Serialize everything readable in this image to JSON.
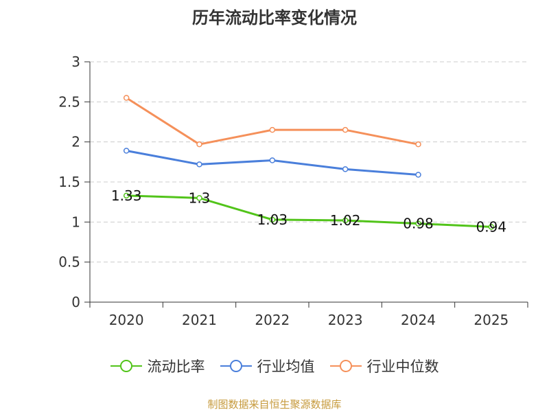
{
  "chart_data": {
    "type": "line",
    "title": "历年流动比率变化情况",
    "categories": [
      "2020",
      "2021",
      "2022",
      "2023",
      "2024",
      "2025"
    ],
    "ylim": [
      0,
      3
    ],
    "yticks": [
      "0",
      "0.5",
      "1",
      "1.5",
      "2",
      "2.5",
      "3"
    ],
    "grid": true,
    "legend_position": "bottom",
    "series": [
      {
        "name": "流动比率",
        "color": "#52c41a",
        "values": [
          1.33,
          1.3,
          1.03,
          1.02,
          0.98,
          0.94
        ],
        "labels": [
          "1.33",
          "1.3",
          "1.03",
          "1.02",
          "0.98",
          "0.94"
        ]
      },
      {
        "name": "行业均值",
        "color": "#4a7fdb",
        "values": [
          1.89,
          1.72,
          1.77,
          1.66,
          1.59,
          null
        ]
      },
      {
        "name": "行业中位数",
        "color": "#f5905a",
        "values": [
          2.55,
          1.97,
          2.15,
          2.15,
          1.97,
          null
        ]
      }
    ]
  },
  "source": "制图数据来自恒生聚源数据库"
}
